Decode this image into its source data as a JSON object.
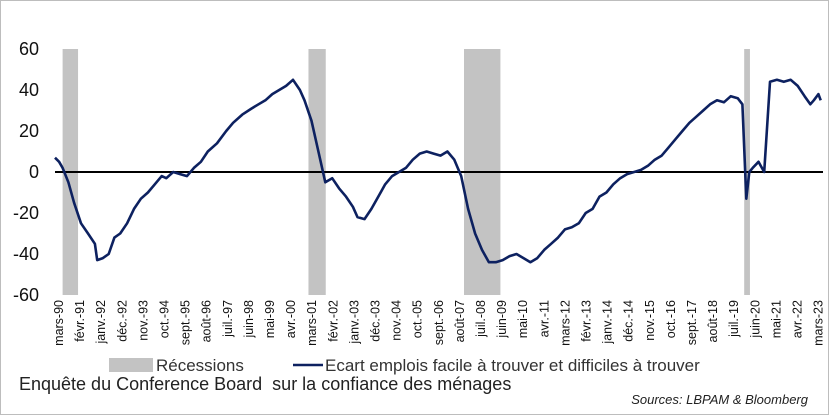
{
  "chart_data": {
    "type": "line",
    "title": "Enquête du Conference Board  sur la confiance des ménages",
    "source": "Sources: LBPAM & Bloomberg",
    "ylim": [
      -60,
      60
    ],
    "yticks": [
      60,
      40,
      20,
      0,
      -20,
      -40,
      -60
    ],
    "xlim": [
      1990.17,
      2023.5
    ],
    "x_tick_labels": [
      "mars-90",
      "févr.-91",
      "janv.-92",
      "déc.-92",
      "nov.-93",
      "oct.-94",
      "sept.-95",
      "août-96",
      "juil.-97",
      "juin-98",
      "mai-99",
      "avr.-00",
      "mars-01",
      "févr.-02",
      "janv.-03",
      "déc.-03",
      "nov.-04",
      "oct.-05",
      "sept.-06",
      "août-07",
      "juil.-08",
      "juin-09",
      "mai-10",
      "avr.-11",
      "mars-12",
      "févr.-13",
      "janv.-14",
      "déc.-14",
      "nov.-15",
      "oct.-16",
      "sept.-17",
      "août-18",
      "juil.-19",
      "juin-20",
      "mai-21",
      "avr.-22",
      "mars-23"
    ],
    "grid": false,
    "legend": {
      "position": "bottom",
      "entries": [
        "Récessions",
        "Ecart emplois facile à trouver et difficiles à trouver"
      ]
    },
    "colors": {
      "line": "#0d2160",
      "recession": "#c3c3c3",
      "zero_line": "#000000"
    },
    "recessions": [
      [
        1990.5,
        1991.17
      ],
      [
        2001.17,
        2001.92
      ],
      [
        2007.92,
        2009.5
      ],
      [
        2020.08,
        2020.33
      ]
    ],
    "series": [
      {
        "name": "Ecart emplois facile à trouver et difficiles à trouver",
        "x": [
          1990.17,
          1990.35,
          1990.5,
          1990.75,
          1991.0,
          1991.3,
          1991.6,
          1991.9,
          1992.0,
          1992.25,
          1992.5,
          1992.75,
          1993.0,
          1993.3,
          1993.6,
          1993.9,
          1994.2,
          1994.5,
          1994.8,
          1995.0,
          1995.3,
          1995.6,
          1995.9,
          1996.2,
          1996.5,
          1996.8,
          1997.2,
          1997.6,
          1997.9,
          1998.3,
          1998.7,
          1999.0,
          1999.3,
          1999.6,
          1999.9,
          2000.2,
          2000.5,
          2000.8,
          2001.0,
          2001.3,
          2001.6,
          2001.9,
          2002.2,
          2002.5,
          2002.8,
          2003.1,
          2003.3,
          2003.6,
          2003.9,
          2004.2,
          2004.5,
          2004.8,
          2005.1,
          2005.4,
          2005.7,
          2006.0,
          2006.3,
          2006.6,
          2006.9,
          2007.2,
          2007.5,
          2007.8,
          2008.1,
          2008.4,
          2008.7,
          2009.0,
          2009.3,
          2009.6,
          2009.9,
          2010.2,
          2010.5,
          2010.8,
          2011.1,
          2011.4,
          2011.7,
          2012.0,
          2012.3,
          2012.6,
          2012.9,
          2013.2,
          2013.5,
          2013.8,
          2014.1,
          2014.4,
          2014.7,
          2015.0,
          2015.3,
          2015.6,
          2015.9,
          2016.2,
          2016.5,
          2016.8,
          2017.1,
          2017.4,
          2017.7,
          2018.0,
          2018.3,
          2018.6,
          2018.9,
          2019.2,
          2019.5,
          2019.8,
          2020.0,
          2020.17,
          2020.3,
          2020.45,
          2020.7,
          2020.95,
          2021.2,
          2021.5,
          2021.8,
          2022.1,
          2022.4,
          2022.7,
          2022.95,
          2023.1,
          2023.3,
          2023.4
        ],
        "values": [
          7,
          5,
          2,
          -5,
          -15,
          -25,
          -30,
          -35,
          -43,
          -42,
          -40,
          -32,
          -30,
          -25,
          -18,
          -13,
          -10,
          -6,
          -2,
          -3,
          0,
          -1,
          -2,
          2,
          5,
          10,
          14,
          20,
          24,
          28,
          31,
          33,
          35,
          38,
          40,
          42,
          45,
          40,
          35,
          25,
          10,
          -5,
          -3,
          -8,
          -12,
          -17,
          -22,
          -23,
          -18,
          -12,
          -6,
          -2,
          0,
          2,
          6,
          9,
          10,
          9,
          8,
          10,
          6,
          -2,
          -18,
          -30,
          -38,
          -44,
          -44,
          -43,
          -41,
          -40,
          -42,
          -44,
          -42,
          -38,
          -35,
          -32,
          -28,
          -27,
          -25,
          -20,
          -18,
          -12,
          -10,
          -6,
          -3,
          -1,
          0,
          1,
          3,
          6,
          8,
          12,
          16,
          20,
          24,
          27,
          30,
          33,
          35,
          34,
          37,
          36,
          33,
          -13,
          0,
          2,
          5,
          0,
          44,
          45,
          44,
          45,
          42,
          37,
          33,
          35,
          38,
          35
        ]
      }
    ]
  }
}
